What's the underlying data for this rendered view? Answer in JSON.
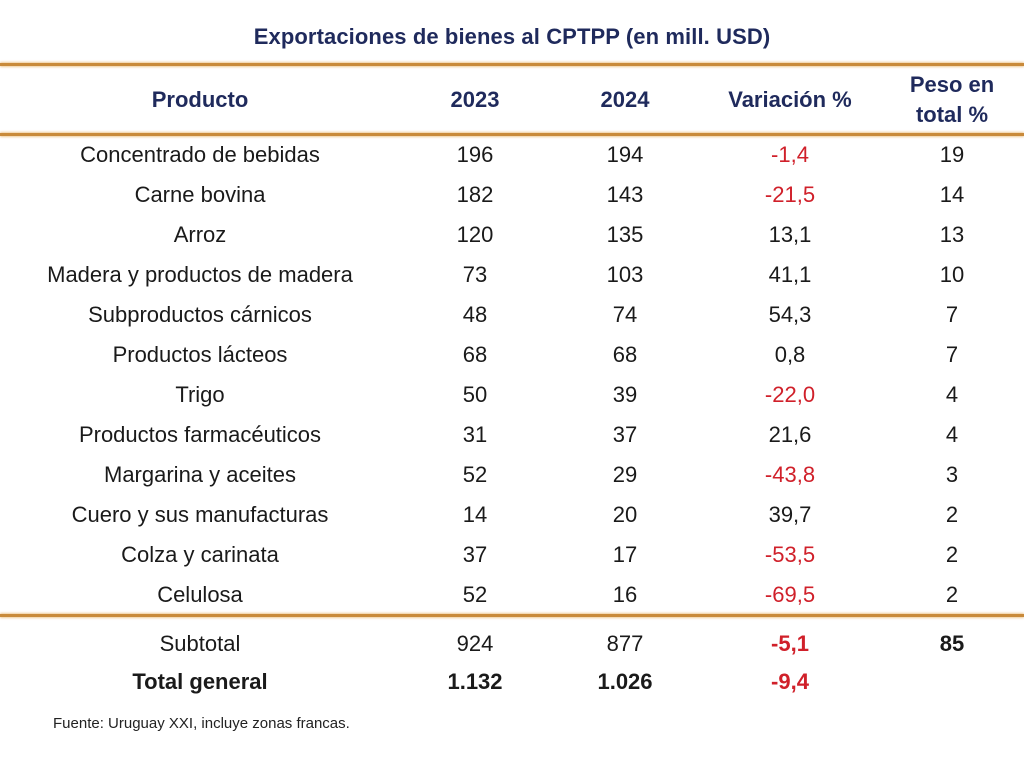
{
  "title": "Exportaciones de bienes al CPTPP (en mill. USD)",
  "headers": [
    "Producto",
    "2023",
    "2024",
    "Variación %",
    "Peso en total %"
  ],
  "header_peso_line1": "Peso en",
  "header_peso_line2": "total %",
  "colors": {
    "title": "#1f2a5c",
    "negative": "#d0202a",
    "rule": "#c98a3a"
  },
  "rows": [
    {
      "producto": "Concentrado de bebidas",
      "y2023": "196",
      "y2024": "194",
      "variacion": "-1,4",
      "peso": "19",
      "negative": true
    },
    {
      "producto": "Carne bovina",
      "y2023": "182",
      "y2024": "143",
      "variacion": "-21,5",
      "peso": "14",
      "negative": true
    },
    {
      "producto": "Arroz",
      "y2023": "120",
      "y2024": "135",
      "variacion": "13,1",
      "peso": "13",
      "negative": false
    },
    {
      "producto": "Madera y productos de madera",
      "y2023": "73",
      "y2024": "103",
      "variacion": "41,1",
      "peso": "10",
      "negative": false
    },
    {
      "producto": "Subproductos cárnicos",
      "y2023": "48",
      "y2024": "74",
      "variacion": "54,3",
      "peso": "7",
      "negative": false
    },
    {
      "producto": "Productos lácteos",
      "y2023": "68",
      "y2024": "68",
      "variacion": "0,8",
      "peso": "7",
      "negative": false
    },
    {
      "producto": "Trigo",
      "y2023": "50",
      "y2024": "39",
      "variacion": "-22,0",
      "peso": "4",
      "negative": true
    },
    {
      "producto": "Productos farmacéuticos",
      "y2023": "31",
      "y2024": "37",
      "variacion": "21,6",
      "peso": "4",
      "negative": false
    },
    {
      "producto": "Margarina y aceites",
      "y2023": "52",
      "y2024": "29",
      "variacion": "-43,8",
      "peso": "3",
      "negative": true
    },
    {
      "producto": "Cuero y sus manufacturas",
      "y2023": "14",
      "y2024": "20",
      "variacion": "39,7",
      "peso": "2",
      "negative": false
    },
    {
      "producto": "Colza y carinata",
      "y2023": "37",
      "y2024": "17",
      "variacion": "-53,5",
      "peso": "2",
      "negative": true
    },
    {
      "producto": "Celulosa",
      "y2023": "52",
      "y2024": "16",
      "variacion": "-69,5",
      "peso": "2",
      "negative": true
    }
  ],
  "subtotal": {
    "producto": "Subtotal",
    "y2023": "924",
    "y2024": "877",
    "variacion": "-5,1",
    "peso": "85"
  },
  "total": {
    "producto": "Total general",
    "y2023": "1.132",
    "y2024": "1.026",
    "variacion": "-9,4",
    "peso": ""
  },
  "source": "Fuente: Uruguay XXI, incluye zonas francas."
}
